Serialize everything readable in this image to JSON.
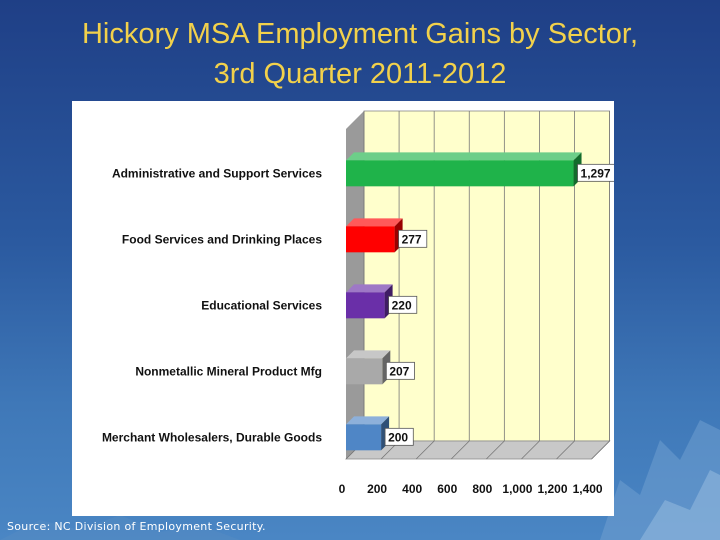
{
  "slide": {
    "title_line1": "Hickory MSA Employment Gains by Sector,",
    "title_line2": "3rd Quarter 2011-2012",
    "source": "Source: NC Division of Employment Security."
  },
  "colors": {
    "title": "#f2d14b",
    "plot_back": "#ffffcc",
    "wall": "#9a9a9a",
    "floor": "#c8c8c8"
  },
  "chart_data": {
    "type": "bar",
    "orientation": "horizontal",
    "title": "",
    "xlabel": "",
    "ylabel": "",
    "xlim": [
      0,
      1400
    ],
    "x_ticks": [
      "0",
      "200",
      "400",
      "600",
      "800",
      "1,000",
      "1,200",
      "1,400"
    ],
    "grid": true,
    "legend": "none",
    "categories": [
      "Administrative and Support Services",
      "Food Services and Drinking Places",
      "Educational Services",
      "Nonmetallic Mineral Product Mfg",
      "Merchant Wholesalers, Durable Goods"
    ],
    "values": [
      1297,
      277,
      220,
      207,
      200
    ],
    "value_labels": [
      "1,297",
      "277",
      "220",
      "207",
      "200"
    ],
    "bar_colors": [
      "#1fb34a",
      "#ff0000",
      "#6a2fa8",
      "#a9a9a9",
      "#4f86c6"
    ]
  }
}
